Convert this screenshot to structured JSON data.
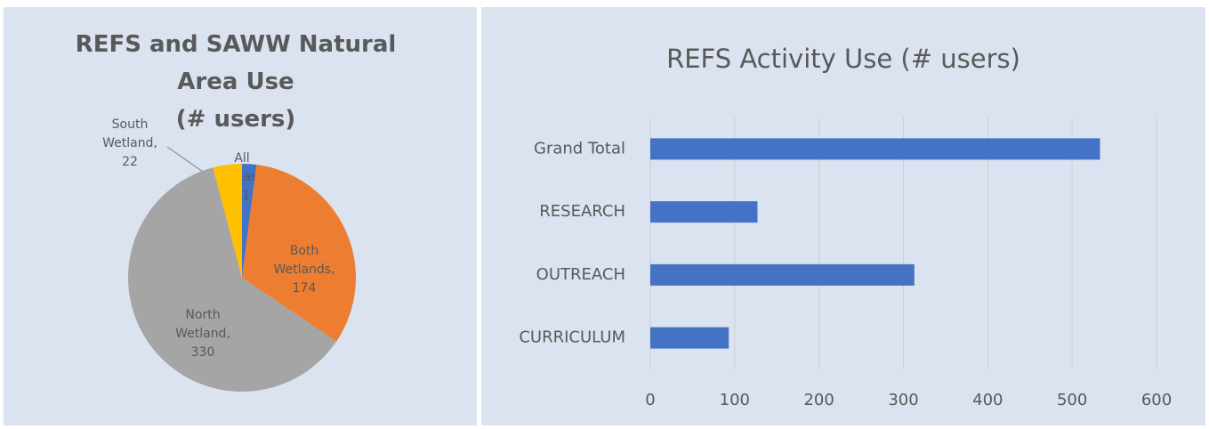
{
  "chart_data": [
    {
      "type": "pie",
      "title": "REFS and SAWW Natural\nArea Use\n(# users)",
      "categories": [
        "All Areas,",
        "Both Wetlands,",
        "North Wetland,",
        "South Wetland,"
      ],
      "values": [
        11,
        174,
        330,
        22
      ],
      "colors": [
        "#4472c4",
        "#ed7d31",
        "#a5a5a5",
        "#ffc000"
      ]
    },
    {
      "type": "hbar",
      "title": "REFS Activity Use (# users)",
      "categories": [
        "CURRICULUM",
        "OUTREACH",
        "RESEARCH",
        "Grand Total"
      ],
      "values": [
        93,
        313,
        127,
        533
      ],
      "color": "#4472c4",
      "xlim": [
        0,
        600
      ],
      "xticks": [
        0,
        100,
        200,
        300,
        400,
        500,
        600
      ],
      "grid": true
    }
  ]
}
